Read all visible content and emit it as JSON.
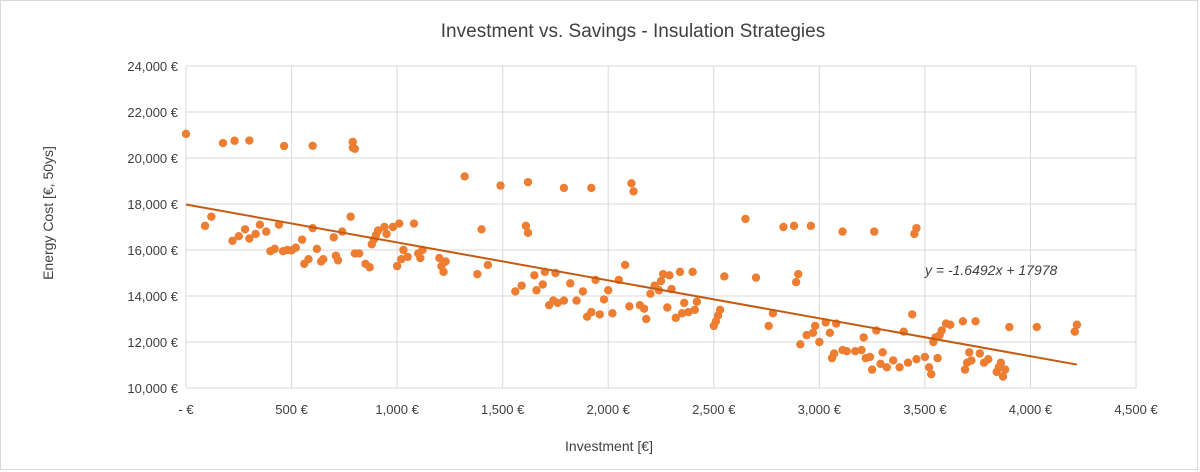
{
  "chart_data": {
    "type": "scatter",
    "title": "Investment vs. Savings - Insulation Strategies",
    "xlabel": "Investment  [€]",
    "ylabel": "Energy Cost [€, 50ys]",
    "xlim": [
      0,
      4500
    ],
    "ylim": [
      10000,
      24000
    ],
    "x_ticks": [
      0,
      500,
      1000,
      1500,
      2000,
      2500,
      3000,
      3500,
      4000,
      4500
    ],
    "x_tick_labels": [
      "-   €",
      "500 €",
      "1,000 €",
      "1,500 €",
      "2,000 €",
      "2,500 €",
      "3,000 €",
      "3,500 €",
      "4,000 €",
      "4,500 €"
    ],
    "y_ticks": [
      10000,
      12000,
      14000,
      16000,
      18000,
      20000,
      22000,
      24000
    ],
    "y_tick_labels": [
      "10,000 €",
      "12,000 €",
      "14,000 €",
      "16,000 €",
      "18,000 €",
      "20,000 €",
      "22,000 €",
      "24,000 €"
    ],
    "grid": true,
    "marker_color": "#ED7D31",
    "trendline_color": "#C55A11",
    "trendline": {
      "slope": -1.6492,
      "intercept": 17978,
      "x_range": [
        0,
        4220
      ],
      "label": "y = -1.6492x + 17978"
    },
    "points": [
      [
        0,
        21050
      ],
      [
        175,
        20650
      ],
      [
        230,
        20750
      ],
      [
        300,
        20760
      ],
      [
        465,
        20520
      ],
      [
        600,
        20530
      ],
      [
        790,
        20700
      ],
      [
        800,
        20400
      ],
      [
        790,
        20450
      ],
      [
        90,
        17050
      ],
      [
        120,
        17450
      ],
      [
        220,
        16400
      ],
      [
        250,
        16600
      ],
      [
        280,
        16900
      ],
      [
        300,
        16500
      ],
      [
        330,
        16700
      ],
      [
        350,
        17100
      ],
      [
        380,
        16800
      ],
      [
        400,
        15950
      ],
      [
        420,
        16050
      ],
      [
        440,
        17100
      ],
      [
        460,
        15950
      ],
      [
        480,
        16000
      ],
      [
        500,
        15980
      ],
      [
        520,
        16100
      ],
      [
        550,
        16450
      ],
      [
        560,
        15400
      ],
      [
        580,
        15600
      ],
      [
        600,
        16950
      ],
      [
        620,
        16050
      ],
      [
        640,
        15500
      ],
      [
        650,
        15600
      ],
      [
        700,
        16550
      ],
      [
        710,
        15750
      ],
      [
        720,
        15550
      ],
      [
        740,
        16800
      ],
      [
        780,
        17450
      ],
      [
        800,
        15850
      ],
      [
        820,
        15850
      ],
      [
        850,
        15400
      ],
      [
        870,
        15250
      ],
      [
        880,
        16250
      ],
      [
        890,
        16450
      ],
      [
        900,
        16650
      ],
      [
        910,
        16850
      ],
      [
        940,
        17000
      ],
      [
        950,
        16700
      ],
      [
        980,
        17000
      ],
      [
        1000,
        15300
      ],
      [
        1010,
        17150
      ],
      [
        1020,
        15600
      ],
      [
        1030,
        16000
      ],
      [
        1050,
        15700
      ],
      [
        1080,
        17150
      ],
      [
        1100,
        15850
      ],
      [
        1110,
        15650
      ],
      [
        1120,
        16000
      ],
      [
        1200,
        15650
      ],
      [
        1210,
        15300
      ],
      [
        1220,
        15050
      ],
      [
        1230,
        15500
      ],
      [
        1380,
        14950
      ],
      [
        1400,
        16900
      ],
      [
        1430,
        15350
      ],
      [
        1560,
        14200
      ],
      [
        1590,
        14450
      ],
      [
        1610,
        17050
      ],
      [
        1620,
        16750
      ],
      [
        1650,
        14900
      ],
      [
        1660,
        14250
      ],
      [
        1690,
        14500
      ],
      [
        1700,
        15050
      ],
      [
        1720,
        13600
      ],
      [
        1740,
        13800
      ],
      [
        1750,
        15000
      ],
      [
        1760,
        13700
      ],
      [
        1790,
        13800
      ],
      [
        1820,
        14550
      ],
      [
        1850,
        13800
      ],
      [
        1880,
        14200
      ],
      [
        1900,
        13100
      ],
      [
        1920,
        13300
      ],
      [
        1940,
        14700
      ],
      [
        1960,
        13200
      ],
      [
        1980,
        13850
      ],
      [
        2000,
        14250
      ],
      [
        2020,
        13250
      ],
      [
        2050,
        14700
      ],
      [
        2080,
        15350
      ],
      [
        2100,
        13550
      ],
      [
        2110,
        18900
      ],
      [
        2120,
        18550
      ],
      [
        2150,
        13600
      ],
      [
        2170,
        13450
      ],
      [
        2180,
        13000
      ],
      [
        2200,
        14100
      ],
      [
        2220,
        14450
      ],
      [
        2240,
        14250
      ],
      [
        2250,
        14650
      ],
      [
        2260,
        14950
      ],
      [
        2280,
        13500
      ],
      [
        2290,
        14900
      ],
      [
        2300,
        14300
      ],
      [
        2320,
        13050
      ],
      [
        2340,
        15050
      ],
      [
        2350,
        13250
      ],
      [
        2360,
        13700
      ],
      [
        2380,
        13300
      ],
      [
        2400,
        15050
      ],
      [
        2410,
        13400
      ],
      [
        2420,
        13750
      ],
      [
        2500,
        12700
      ],
      [
        2510,
        12900
      ],
      [
        2520,
        13150
      ],
      [
        2530,
        13400
      ],
      [
        2550,
        14850
      ],
      [
        2650,
        17350
      ],
      [
        2700,
        14800
      ],
      [
        2760,
        12700
      ],
      [
        2780,
        13250
      ],
      [
        1320,
        19200
      ],
      [
        1490,
        18800
      ],
      [
        1620,
        18950
      ],
      [
        1790,
        18700
      ],
      [
        1920,
        18700
      ],
      [
        2830,
        17000
      ],
      [
        2880,
        17050
      ],
      [
        2960,
        17050
      ],
      [
        3110,
        16800
      ],
      [
        3260,
        16800
      ],
      [
        3450,
        16700
      ],
      [
        3460,
        16950
      ],
      [
        2890,
        14600
      ],
      [
        2900,
        14950
      ],
      [
        2910,
        11900
      ],
      [
        2940,
        12300
      ],
      [
        2970,
        12400
      ],
      [
        2980,
        12700
      ],
      [
        3000,
        12000
      ],
      [
        3030,
        12850
      ],
      [
        3050,
        12400
      ],
      [
        3060,
        11300
      ],
      [
        3070,
        11500
      ],
      [
        3080,
        12800
      ],
      [
        3110,
        11650
      ],
      [
        3130,
        11600
      ],
      [
        3170,
        11600
      ],
      [
        3200,
        11650
      ],
      [
        3210,
        12200
      ],
      [
        3220,
        11300
      ],
      [
        3240,
        11350
      ],
      [
        3250,
        10800
      ],
      [
        3270,
        12500
      ],
      [
        3290,
        11050
      ],
      [
        3300,
        11550
      ],
      [
        3320,
        10900
      ],
      [
        3350,
        11200
      ],
      [
        3380,
        10900
      ],
      [
        3400,
        12450
      ],
      [
        3420,
        11100
      ],
      [
        3440,
        13200
      ],
      [
        3460,
        11250
      ],
      [
        3500,
        11350
      ],
      [
        3520,
        10900
      ],
      [
        3530,
        10600
      ],
      [
        3540,
        12000
      ],
      [
        3550,
        12200
      ],
      [
        3560,
        11300
      ],
      [
        3570,
        12300
      ],
      [
        3580,
        12500
      ],
      [
        3600,
        12800
      ],
      [
        3620,
        12750
      ],
      [
        3680,
        12900
      ],
      [
        3690,
        10800
      ],
      [
        3700,
        11100
      ],
      [
        3710,
        11550
      ],
      [
        3720,
        11200
      ],
      [
        3740,
        12900
      ],
      [
        3760,
        11500
      ],
      [
        3780,
        11100
      ],
      [
        3800,
        11250
      ],
      [
        3840,
        10700
      ],
      [
        3850,
        10900
      ],
      [
        3860,
        11100
      ],
      [
        3870,
        10500
      ],
      [
        3880,
        10800
      ],
      [
        3900,
        12650
      ],
      [
        4030,
        12650
      ],
      [
        4210,
        12450
      ],
      [
        4220,
        12750
      ]
    ]
  }
}
